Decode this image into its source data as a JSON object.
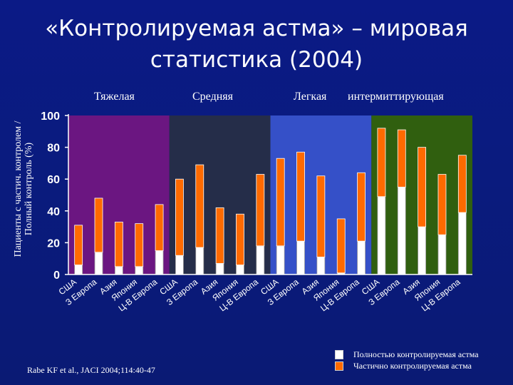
{
  "title_line1": "«Контролируемая астма» – мировая",
  "title_line2": "статистика (2004)",
  "citation": "Rabe KF et al., JACI 2004;114:40-47",
  "colors": {
    "controlled": "#ffffff",
    "partial": "#ff6a00",
    "severe_bg": "#6b1681",
    "moderate_bg": "#252d49",
    "mild_bg": "#3550c8",
    "intermittent_bg": "#305f0f",
    "axis": "#ffffff"
  },
  "legend": {
    "controlled": "Полностью контролируемая астма",
    "partial": "Частично контролируемая астма"
  },
  "chart_data": {
    "type": "bar",
    "stacked": true,
    "ylabel_line1": "Пациенты с частич. контролем /",
    "ylabel_line2": "Полный контроль (%)",
    "ylim": [
      0,
      100
    ],
    "yticks": [
      "0",
      "20",
      "40",
      "60",
      "80",
      "100"
    ],
    "groups": [
      {
        "label": "Тяжелая",
        "categories": [
          "США",
          "З Европа",
          "Азия",
          "Япония",
          "Ц-В Европа"
        ],
        "controlled": [
          6,
          14,
          5,
          5,
          15
        ],
        "partial": [
          25,
          34,
          28,
          27,
          29
        ]
      },
      {
        "label": "Средняя",
        "categories": [
          "США",
          "З Европа",
          "Азия",
          "Япония",
          "Ц-В Европа"
        ],
        "controlled": [
          12,
          17,
          7,
          6,
          18
        ],
        "partial": [
          48,
          52,
          35,
          32,
          45
        ]
      },
      {
        "label": "Легкая",
        "categories": [
          "США",
          "З Европа",
          "Азия",
          "Япония",
          "Ц-В Европа"
        ],
        "controlled": [
          18,
          21,
          11,
          1,
          21
        ],
        "partial": [
          55,
          56,
          51,
          34,
          43
        ]
      },
      {
        "label": "интермиттирующая",
        "categories": [
          "США",
          "З Европа",
          "Азия",
          "Япония",
          "Ц-В Европа"
        ],
        "controlled": [
          49,
          55,
          30,
          25,
          39
        ],
        "partial": [
          43,
          36,
          50,
          38,
          36
        ]
      }
    ],
    "series": [
      {
        "name": "Полностью контролируемая астма",
        "key": "controlled"
      },
      {
        "name": "Частично контролируемая астма",
        "key": "partial"
      }
    ]
  }
}
